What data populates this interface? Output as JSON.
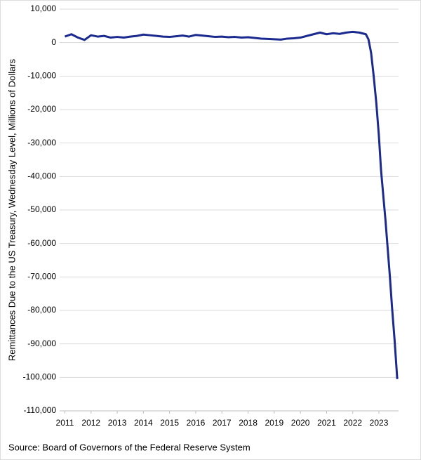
{
  "chart_data": {
    "type": "line",
    "y_label": "Remittances Due to the US Treasury, Wednesday Level, Millions of Dollars",
    "source": "Source: Board of Governors of the Federal Reserve System",
    "x": [
      2011.0,
      2011.25,
      2011.5,
      2011.75,
      2012.0,
      2012.25,
      2012.5,
      2012.75,
      2013.0,
      2013.25,
      2013.5,
      2013.75,
      2014.0,
      2014.25,
      2014.5,
      2014.75,
      2015.0,
      2015.25,
      2015.5,
      2015.75,
      2016.0,
      2016.25,
      2016.5,
      2016.75,
      2017.0,
      2017.25,
      2017.5,
      2017.75,
      2018.0,
      2018.25,
      2018.5,
      2018.75,
      2019.0,
      2019.25,
      2019.5,
      2019.75,
      2020.0,
      2020.25,
      2020.5,
      2020.75,
      2021.0,
      2021.25,
      2021.5,
      2021.75,
      2022.0,
      2022.25,
      2022.5,
      2022.6,
      2022.7,
      2022.8,
      2022.9,
      2023.0,
      2023.08,
      2023.17,
      2023.25,
      2023.33,
      2023.42,
      2023.5,
      2023.6,
      2023.7
    ],
    "series": [
      {
        "name": "Remittances",
        "color": "#1b2a8f",
        "values": [
          1800,
          2500,
          1500,
          800,
          2200,
          1800,
          2000,
          1500,
          1700,
          1500,
          1800,
          2000,
          2400,
          2200,
          2000,
          1800,
          1700,
          1900,
          2100,
          1800,
          2300,
          2100,
          1900,
          1700,
          1800,
          1600,
          1700,
          1500,
          1600,
          1400,
          1200,
          1100,
          1000,
          900,
          1200,
          1300,
          1500,
          2000,
          2500,
          3000,
          2500,
          2800,
          2600,
          3000,
          3200,
          3000,
          2500,
          1000,
          -3000,
          -10000,
          -18000,
          -28000,
          -38000,
          -46000,
          -53000,
          -61000,
          -70000,
          -79000,
          -89000,
          -100500
        ]
      }
    ],
    "xlim": [
      2010.8,
      2023.75
    ],
    "xticks": [
      2011,
      2012,
      2013,
      2014,
      2015,
      2016,
      2017,
      2018,
      2019,
      2020,
      2021,
      2022,
      2023
    ],
    "ylim": [
      -110000,
      10000
    ],
    "yticks": [
      {
        "value": 10000,
        "label": "10,000"
      },
      0,
      {
        "value": -10000,
        "label": "-10,000"
      },
      {
        "value": -20000,
        "label": "-20,000"
      },
      {
        "value": -30000,
        "label": "-30,000"
      },
      {
        "value": -40000,
        "label": "-40,000"
      },
      {
        "value": -50000,
        "label": "-50,000"
      },
      {
        "value": -60000,
        "label": "-60,000"
      },
      {
        "value": -70000,
        "label": "-70,000"
      },
      {
        "value": -80000,
        "label": "-80,000"
      },
      {
        "value": -90000,
        "label": "-90,000"
      },
      {
        "value": -100000,
        "label": "-100,000"
      },
      {
        "value": -110000,
        "label": "-110,000"
      }
    ],
    "grid": true
  }
}
